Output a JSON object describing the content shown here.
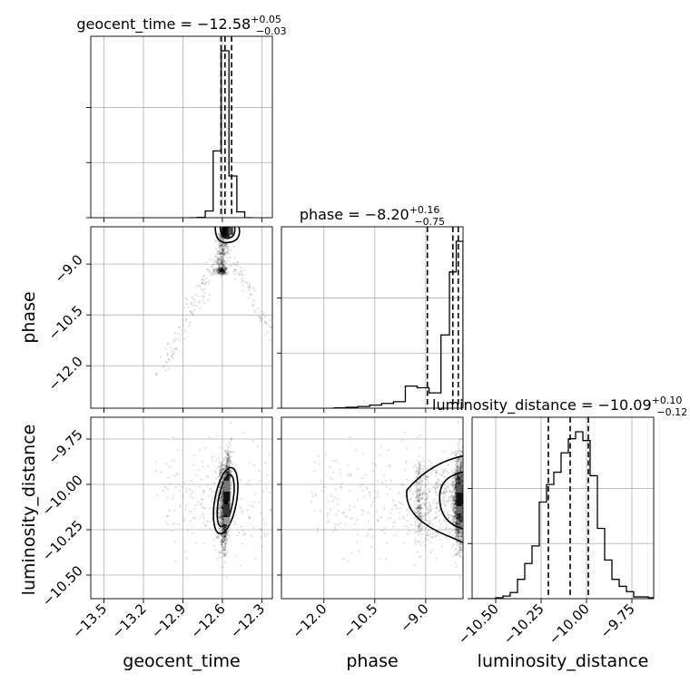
{
  "chart_data": {
    "type": "corner",
    "parameters": [
      {
        "name": "geocent_time",
        "xlabel": "geocent_time",
        "title": {
          "base": "geocent_time = −12.58",
          "sup": "+0.05",
          "sub": "−0.03"
        },
        "median": -12.58,
        "quantiles": [
          -12.61,
          -12.58,
          -12.53
        ],
        "range": [
          -13.6,
          -12.22
        ],
        "ticks": [
          -13.5,
          -13.2,
          -12.9,
          -12.6,
          -12.3
        ],
        "tick_labels": [
          "−13.5",
          "−13.2",
          "−12.9",
          "−12.6",
          "−12.3"
        ],
        "hist": {
          "edges": [
            -12.85,
            -12.79,
            -12.73,
            -12.67,
            -12.61,
            -12.55,
            -12.49,
            -12.43,
            -12.37
          ],
          "counts": [
            0.0,
            0.002,
            0.04,
            0.4,
            1.0,
            0.25,
            0.035,
            0.0
          ]
        }
      },
      {
        "name": "phase",
        "ylabel": "phase",
        "xlabel": "phase",
        "title": {
          "base": "phase = −8.20",
          "sup": "+0.16",
          "sub": "−0.75"
        },
        "median": -8.2,
        "quantiles": [
          -8.95,
          -8.2,
          -8.04
        ],
        "range": [
          -13.25,
          -7.9
        ],
        "ticks": [
          -12.0,
          -10.5,
          -9.0
        ],
        "tick_labels": [
          "−12.0",
          "−10.5",
          "−9.0"
        ],
        "hist": {
          "edges": [
            -11.7,
            -11.35,
            -11.0,
            -10.65,
            -10.3,
            -9.95,
            -9.6,
            -9.25,
            -8.9,
            -8.55,
            -8.3,
            -8.1,
            -7.9
          ],
          "counts": [
            0.002,
            0.005,
            0.01,
            0.018,
            0.028,
            0.038,
            0.13,
            0.12,
            0.09,
            0.43,
            0.8,
            0.98
          ]
        }
      },
      {
        "name": "luminosity_distance",
        "ylabel": "luminosity_distance",
        "xlabel": "luminosity_distance",
        "title": {
          "base": "luminosity_distance = −10.09",
          "sup": "+0.10",
          "sub": "−0.12"
        },
        "median": -10.09,
        "quantiles": [
          -10.21,
          -10.09,
          -9.99
        ],
        "range": [
          -10.63,
          -9.63
        ],
        "ticks": [
          -10.5,
          -10.25,
          -10.0,
          -9.75
        ],
        "tick_labels": [
          "−10.50",
          "−10.25",
          "−10.00",
          "−9.75"
        ],
        "hist": {
          "edges": [
            -10.63,
            -10.5,
            -10.46,
            -10.42,
            -10.38,
            -10.34,
            -10.3,
            -10.26,
            -10.22,
            -10.18,
            -10.14,
            -10.1,
            -10.06,
            -10.02,
            -9.98,
            -9.94,
            -9.9,
            -9.86,
            -9.82,
            -9.78,
            -9.74,
            -9.7,
            -9.66,
            -9.63
          ],
          "counts": [
            0.0,
            0.005,
            0.015,
            0.035,
            0.11,
            0.2,
            0.3,
            0.55,
            0.65,
            0.72,
            0.83,
            0.91,
            0.95,
            0.9,
            0.7,
            0.4,
            0.22,
            0.11,
            0.07,
            0.04,
            0.01,
            0.01,
            0.005
          ]
        }
      }
    ],
    "scatter_2d": [
      {
        "x": "geocent_time",
        "y": "phase",
        "density_peak": [
          -12.56,
          -8.0
        ]
      },
      {
        "x": "geocent_time",
        "y": "luminosity_distance",
        "density_peak": [
          -12.57,
          -10.09
        ]
      },
      {
        "x": "phase",
        "y": "luminosity_distance",
        "density_peak": [
          -8.0,
          -10.09
        ]
      }
    ],
    "quantile_line_style": "dashed",
    "grid": true
  }
}
